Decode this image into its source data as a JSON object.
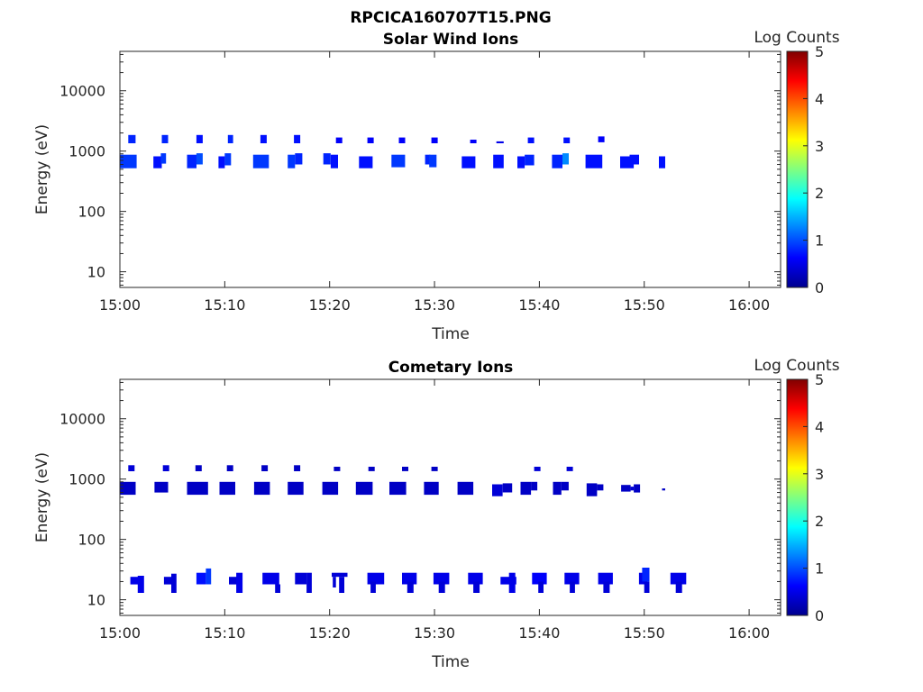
{
  "figure": {
    "title": "RPCICA160707T15.PNG"
  },
  "colors": {
    "background": "#ffffff",
    "axis": "#262626"
  },
  "colorscale": [
    "#00008f",
    "#0000ff",
    "#0080ff",
    "#00ffff",
    "#80ff80",
    "#ffff00",
    "#ff8000",
    "#ff0000",
    "#800000"
  ],
  "chart_data": [
    {
      "type": "heatmap",
      "title": "Solar Wind Ions",
      "xlabel": "Time",
      "ylabel": "Energy (eV)",
      "yscale": "log",
      "xlim": [
        0,
        63
      ],
      "ylim": [
        5.5,
        45000
      ],
      "xticks": [
        0,
        10,
        20,
        30,
        40,
        50,
        60
      ],
      "xtick_labels": [
        "15:00",
        "15:10",
        "15:20",
        "15:30",
        "15:40",
        "15:50",
        "16:00"
      ],
      "yticks": [
        10,
        100,
        1000,
        10000
      ],
      "ytick_labels": [
        "10",
        "100",
        "1000",
        "10000"
      ],
      "colorbar": {
        "label": "Log Counts",
        "range": [
          0,
          5
        ],
        "ticks": [
          "0",
          "1",
          "2",
          "3",
          "4",
          "5"
        ]
      },
      "x_units": "minutes after 15:00",
      "cell_fields": [
        "t_start_min",
        "t_end_min",
        "e_low_eV",
        "e_high_eV",
        "log_counts"
      ],
      "cells": [
        [
          0.0,
          1.6,
          520,
          870,
          0.9
        ],
        [
          0.8,
          1.5,
          1350,
          1850,
          0.8
        ],
        [
          3.2,
          4.0,
          520,
          820,
          0.7
        ],
        [
          3.9,
          4.4,
          620,
          920,
          0.9
        ],
        [
          4.0,
          4.6,
          1350,
          1850,
          0.8
        ],
        [
          6.4,
          7.3,
          520,
          870,
          0.8
        ],
        [
          7.3,
          7.9,
          600,
          920,
          1.0
        ],
        [
          7.3,
          7.9,
          1350,
          1850,
          0.7
        ],
        [
          9.4,
          10.0,
          520,
          820,
          0.7
        ],
        [
          10.0,
          10.6,
          580,
          920,
          0.9
        ],
        [
          10.3,
          10.8,
          1350,
          1850,
          0.8
        ],
        [
          12.7,
          14.2,
          520,
          870,
          0.9
        ],
        [
          13.4,
          14.0,
          1350,
          1850,
          0.7
        ],
        [
          16.0,
          16.7,
          520,
          870,
          0.9
        ],
        [
          16.7,
          17.4,
          600,
          920,
          0.8
        ],
        [
          16.6,
          17.2,
          1350,
          1850,
          0.7
        ],
        [
          19.4,
          20.1,
          600,
          920,
          0.8
        ],
        [
          20.1,
          20.8,
          520,
          870,
          0.7
        ],
        [
          20.6,
          21.2,
          1350,
          1680,
          0.6
        ],
        [
          22.8,
          24.1,
          520,
          820,
          0.7
        ],
        [
          23.6,
          24.2,
          1350,
          1680,
          0.6
        ],
        [
          25.9,
          27.2,
          540,
          870,
          0.9
        ],
        [
          26.6,
          27.2,
          1350,
          1680,
          0.6
        ],
        [
          29.1,
          29.6,
          600,
          870,
          0.8
        ],
        [
          29.5,
          30.2,
          540,
          870,
          0.9
        ],
        [
          29.7,
          30.3,
          1350,
          1680,
          0.6
        ],
        [
          32.6,
          33.9,
          520,
          820,
          0.7
        ],
        [
          33.4,
          34.0,
          1350,
          1550,
          0.6
        ],
        [
          35.6,
          36.6,
          520,
          870,
          0.7
        ],
        [
          35.9,
          36.6,
          1350,
          1450,
          0.5
        ],
        [
          37.9,
          38.6,
          520,
          820,
          0.7
        ],
        [
          38.6,
          39.5,
          580,
          870,
          0.8
        ],
        [
          38.9,
          39.5,
          1350,
          1680,
          0.7
        ],
        [
          41.2,
          42.2,
          520,
          870,
          0.8
        ],
        [
          42.2,
          42.8,
          600,
          920,
          1.3
        ],
        [
          42.3,
          42.9,
          1350,
          1680,
          0.7
        ],
        [
          44.4,
          46.0,
          520,
          870,
          0.7
        ],
        [
          45.6,
          46.2,
          1400,
          1750,
          0.6
        ],
        [
          47.7,
          49.0,
          520,
          820,
          0.7
        ],
        [
          48.6,
          49.5,
          600,
          870,
          0.7
        ],
        [
          51.4,
          52.0,
          520,
          820,
          0.7
        ]
      ]
    },
    {
      "type": "heatmap",
      "title": "Cometary Ions",
      "xlabel": "Time",
      "ylabel": "Energy (eV)",
      "yscale": "log",
      "xlim": [
        0,
        63
      ],
      "ylim": [
        5.5,
        45000
      ],
      "xticks": [
        0,
        10,
        20,
        30,
        40,
        50,
        60
      ],
      "xtick_labels": [
        "15:00",
        "15:10",
        "15:20",
        "15:30",
        "15:40",
        "15:50",
        "16:00"
      ],
      "yticks": [
        10,
        100,
        1000,
        10000
      ],
      "ytick_labels": [
        "10",
        "100",
        "1000",
        "10000"
      ],
      "colorbar": {
        "label": "Log Counts",
        "range": [
          0,
          5
        ],
        "ticks": [
          "0",
          "1",
          "2",
          "3",
          "4",
          "5"
        ]
      },
      "x_units": "minutes after 15:00",
      "cell_fields": [
        "t_start_min",
        "t_end_min",
        "e_low_eV",
        "e_high_eV",
        "log_counts"
      ],
      "cells": [
        [
          0.0,
          1.5,
          550,
          900,
          0.3
        ],
        [
          0.8,
          1.4,
          1350,
          1700,
          0.4
        ],
        [
          3.3,
          4.6,
          600,
          900,
          0.3
        ],
        [
          4.1,
          4.7,
          1350,
          1700,
          0.4
        ],
        [
          6.4,
          8.4,
          550,
          900,
          0.3
        ],
        [
          7.2,
          7.8,
          1350,
          1700,
          0.3
        ],
        [
          9.5,
          11.0,
          550,
          900,
          0.3
        ],
        [
          10.2,
          10.8,
          1350,
          1700,
          0.3
        ],
        [
          12.8,
          14.3,
          550,
          900,
          0.3
        ],
        [
          13.5,
          14.1,
          1350,
          1700,
          0.3
        ],
        [
          16.0,
          17.5,
          550,
          900,
          0.3
        ],
        [
          16.6,
          17.2,
          1350,
          1700,
          0.3
        ],
        [
          19.3,
          20.8,
          550,
          900,
          0.3
        ],
        [
          20.4,
          21.0,
          1350,
          1600,
          0.3
        ],
        [
          22.5,
          24.1,
          550,
          900,
          0.3
        ],
        [
          23.7,
          24.3,
          1350,
          1600,
          0.3
        ],
        [
          25.7,
          27.3,
          550,
          900,
          0.3
        ],
        [
          26.9,
          27.5,
          1350,
          1600,
          0.3
        ],
        [
          29.0,
          30.4,
          550,
          900,
          0.3
        ],
        [
          29.7,
          30.3,
          1350,
          1600,
          0.3
        ],
        [
          32.2,
          33.7,
          550,
          900,
          0.3
        ],
        [
          35.5,
          36.5,
          520,
          820,
          0.4
        ],
        [
          36.5,
          37.4,
          600,
          850,
          0.3
        ],
        [
          38.2,
          39.2,
          550,
          900,
          0.3
        ],
        [
          39.2,
          39.8,
          650,
          900,
          0.3
        ],
        [
          39.5,
          40.1,
          1350,
          1600,
          0.4
        ],
        [
          41.3,
          42.1,
          550,
          900,
          0.3
        ],
        [
          42.1,
          42.8,
          650,
          900,
          0.3
        ],
        [
          42.6,
          43.2,
          1350,
          1600,
          0.4
        ],
        [
          44.5,
          45.5,
          520,
          850,
          0.3
        ],
        [
          45.5,
          46.1,
          650,
          820,
          0.3
        ],
        [
          47.8,
          48.7,
          620,
          800,
          0.3
        ],
        [
          48.7,
          49.0,
          650,
          750,
          0.4
        ],
        [
          49.0,
          49.6,
          600,
          820,
          0.3
        ],
        [
          51.7,
          52.0,
          650,
          700,
          0.3
        ],
        [
          1.0,
          2.0,
          18,
          24,
          0.5
        ],
        [
          1.7,
          2.3,
          13,
          25,
          0.5
        ],
        [
          4.2,
          5.2,
          18,
          24,
          0.4
        ],
        [
          4.9,
          5.4,
          13,
          27,
          0.4
        ],
        [
          7.3,
          8.2,
          18,
          28,
          0.7
        ],
        [
          8.2,
          8.7,
          18,
          33,
          0.9
        ],
        [
          10.4,
          11.2,
          18,
          24,
          0.4
        ],
        [
          11.1,
          11.7,
          13,
          28,
          0.5
        ],
        [
          13.6,
          14.4,
          18,
          28,
          0.5
        ],
        [
          14.4,
          15.2,
          18,
          28,
          0.5
        ],
        [
          14.8,
          15.3,
          13,
          18,
          0.4
        ],
        [
          16.7,
          17.8,
          18,
          28,
          0.4
        ],
        [
          17.8,
          18.3,
          13,
          28,
          0.4
        ],
        [
          20.2,
          21.7,
          24,
          28,
          0.4
        ],
        [
          20.3,
          20.6,
          16,
          24,
          0.4
        ],
        [
          20.9,
          21.4,
          13,
          24,
          0.4
        ],
        [
          23.6,
          25.2,
          18,
          28,
          0.5
        ],
        [
          23.9,
          24.4,
          13,
          20,
          0.4
        ],
        [
          26.9,
          28.3,
          18,
          28,
          0.5
        ],
        [
          27.4,
          28.0,
          13,
          20,
          0.4
        ],
        [
          29.9,
          31.4,
          18,
          28,
          0.5
        ],
        [
          30.4,
          31.0,
          13,
          20,
          0.4
        ],
        [
          33.2,
          34.6,
          18,
          28,
          0.5
        ],
        [
          33.7,
          34.3,
          13,
          20,
          0.4
        ],
        [
          36.3,
          37.8,
          18,
          24,
          0.5
        ],
        [
          37.1,
          37.7,
          13,
          28,
          0.5
        ],
        [
          39.3,
          40.7,
          18,
          28,
          0.6
        ],
        [
          39.9,
          40.4,
          13,
          20,
          0.4
        ],
        [
          42.4,
          43.8,
          18,
          28,
          0.5
        ],
        [
          42.9,
          43.4,
          13,
          20,
          0.4
        ],
        [
          45.6,
          47.0,
          18,
          28,
          0.5
        ],
        [
          46.1,
          46.7,
          13,
          20,
          0.4
        ],
        [
          49.5,
          50.3,
          18,
          28,
          0.5
        ],
        [
          49.8,
          50.5,
          20,
          34,
          0.8
        ],
        [
          50.0,
          50.5,
          13,
          20,
          0.4
        ],
        [
          52.5,
          54.0,
          18,
          28,
          0.5
        ],
        [
          53.0,
          53.6,
          13,
          20,
          0.4
        ]
      ]
    }
  ]
}
